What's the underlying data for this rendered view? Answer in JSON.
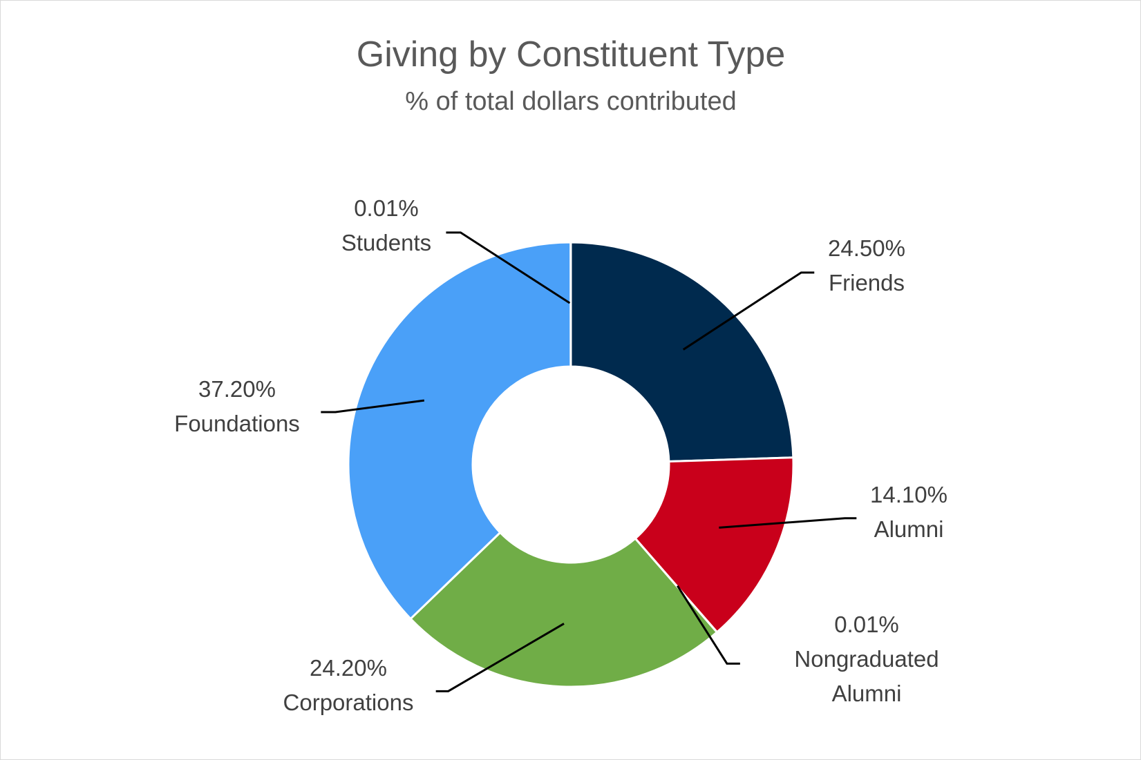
{
  "chart_data": {
    "type": "pie",
    "variant": "doughnut",
    "title": "Giving by Constituent Type",
    "subtitle": "% of total dollars contributed",
    "unit": "%",
    "slices": [
      {
        "name": "Friends",
        "value": 24.5,
        "label": "24.50%",
        "color": "#002A4E"
      },
      {
        "name": "Alumni",
        "value": 14.1,
        "label": "14.10%",
        "color": "#C9001B"
      },
      {
        "name": "Nongraduated Alumni",
        "value": 0.01,
        "label": "0.01%",
        "color": "#FFC000"
      },
      {
        "name": "Corporations",
        "value": 24.2,
        "label": "24.20%",
        "color": "#70AD47"
      },
      {
        "name": "Foundations",
        "value": 37.2,
        "label": "37.20%",
        "color": "#4AA0F8"
      },
      {
        "name": "Students",
        "value": 0.01,
        "label": "0.01%",
        "color": "#A5A5A5"
      }
    ],
    "legend": "none (data labels with leader lines)"
  }
}
